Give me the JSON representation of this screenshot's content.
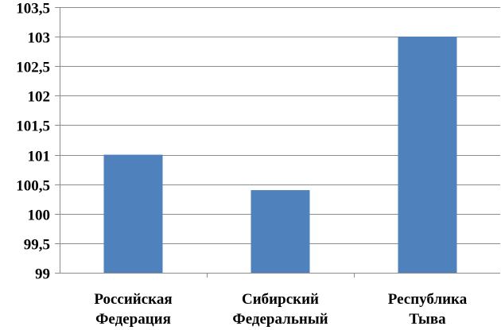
{
  "chart_data": {
    "type": "bar",
    "categories": [
      [
        "Российская",
        "Федерация"
      ],
      [
        "Сибирский",
        "Федеральный"
      ],
      [
        "Республика",
        "Тыва"
      ]
    ],
    "values": [
      101,
      100.4,
      103
    ],
    "ylim": [
      99,
      103.5
    ],
    "ytick_step": 0.5,
    "yticks": [
      "99",
      "99,5",
      "100",
      "100,5",
      "101",
      "101,5",
      "102",
      "102,5",
      "103",
      "103,5"
    ],
    "grid": true,
    "legend": "none",
    "bar_color": "#4f81bd",
    "grid_color": "#8c8c8c",
    "axis_color": "#8c8c8c"
  }
}
